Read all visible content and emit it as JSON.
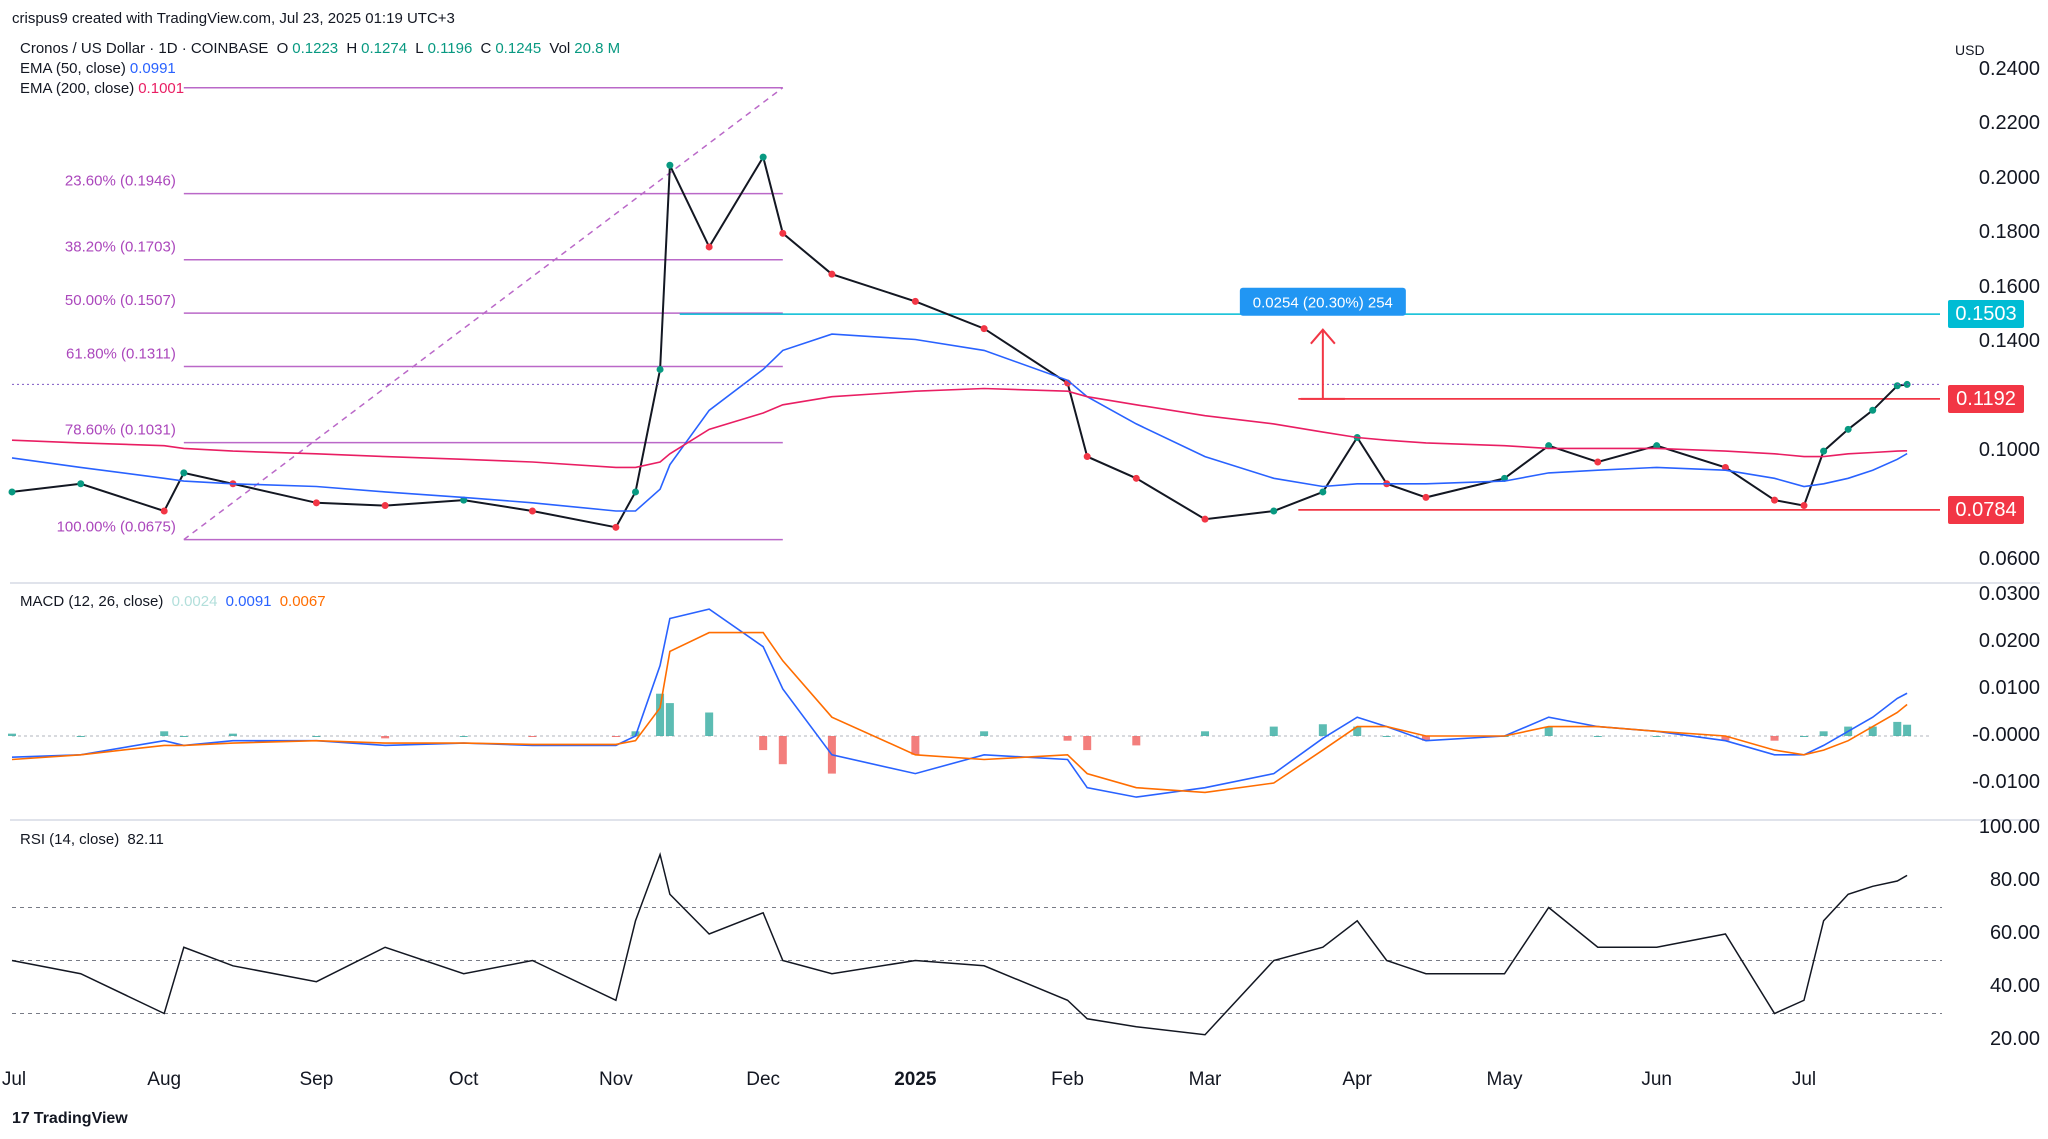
{
  "header": {
    "created_by": "crispus9 created with TradingView.com, Jul 23, 2025 01:19 UTC+3",
    "currency": "USD",
    "footer_brand": "TradingView"
  },
  "symbol_line": {
    "name": "Cronos / US Dollar · 1D · COINBASE",
    "o_label": "O",
    "o_value": "0.1223",
    "h_label": "H",
    "h_value": "0.1274",
    "l_label": "L",
    "l_value": "0.1196",
    "c_label": "C",
    "c_value": "0.1245",
    "vol_label": "Vol",
    "vol_value": "20.8 M"
  },
  "indicators": {
    "ema50": {
      "label": "EMA (50, close)",
      "value": "0.0991",
      "color": "#2962ff"
    },
    "ema200": {
      "label": "EMA (200, close)",
      "value": "0.1001",
      "color": "#e91e63"
    },
    "macd": {
      "label": "MACD (12, 26, close)",
      "hist": "0.0024",
      "macd": "0.0091",
      "signal": "0.0067",
      "hist_color": "#b2dfdb",
      "macd_color": "#2962ff",
      "signal_color": "#ff6d00"
    },
    "rsi": {
      "label": "RSI (14, close)",
      "value": "82.11"
    }
  },
  "price_scale": [
    "0.2400",
    "0.2200",
    "0.2000",
    "0.1800",
    "0.1600",
    "0.1400",
    "0.1000",
    "0.0600"
  ],
  "price_badges": [
    {
      "value": "0.1503",
      "color": "#00bcd4"
    },
    {
      "value": "0.1192",
      "color": "#f23645"
    },
    {
      "value": "0.0784",
      "color": "#f23645"
    }
  ],
  "macd_scale": [
    "0.0300",
    "0.0200",
    "0.0100",
    "-0.0000",
    "-0.0100"
  ],
  "rsi_scale": [
    "100.00",
    "80.00",
    "60.00",
    "40.00",
    "20.00"
  ],
  "time_axis": [
    "Jul",
    "Aug",
    "Sep",
    "Oct",
    "Nov",
    "Dec",
    "2025",
    "Feb",
    "Mar",
    "Apr",
    "May",
    "Jun",
    "Jul"
  ],
  "measure_label": "0.0254 (20.30%) 254",
  "fib_levels": [
    {
      "label": "23.60% (0.1946)",
      "price": 0.1946
    },
    {
      "label": "38.20% (0.1703)",
      "price": 0.1703
    },
    {
      "label": "50.00% (0.1507)",
      "price": 0.1507
    },
    {
      "label": "61.80% (0.1311)",
      "price": 0.1311
    },
    {
      "label": "78.60% (0.1031)",
      "price": 0.1031
    },
    {
      "label": "100.00% (0.0675)",
      "price": 0.0675
    }
  ],
  "chart_data": {
    "type": "line",
    "title": "Cronos / US Dollar · 1D · COINBASE",
    "x_dates": [
      "2024-07-01",
      "2024-07-15",
      "2024-08-01",
      "2024-08-05",
      "2024-08-15",
      "2024-09-01",
      "2024-09-15",
      "2024-10-01",
      "2024-10-15",
      "2024-11-01",
      "2024-11-05",
      "2024-11-10",
      "2024-11-12",
      "2024-11-20",
      "2024-12-01",
      "2024-12-05",
      "2024-12-15",
      "2025-01-01",
      "2025-01-15",
      "2025-02-01",
      "2025-02-05",
      "2025-02-15",
      "2025-03-01",
      "2025-03-15",
      "2025-03-25",
      "2025-04-01",
      "2025-04-07",
      "2025-04-15",
      "2025-05-01",
      "2025-05-10",
      "2025-05-20",
      "2025-06-01",
      "2025-06-15",
      "2025-06-25",
      "2025-07-01",
      "2025-07-05",
      "2025-07-10",
      "2025-07-15",
      "2025-07-20",
      "2025-07-22"
    ],
    "series": [
      {
        "name": "Cronos / US Dollar",
        "values": [
          0.085,
          0.088,
          0.078,
          0.092,
          0.088,
          0.081,
          0.08,
          0.082,
          0.078,
          0.072,
          0.085,
          0.13,
          0.205,
          0.175,
          0.208,
          0.18,
          0.165,
          0.155,
          0.145,
          0.125,
          0.098,
          0.09,
          0.075,
          0.078,
          0.085,
          0.105,
          0.088,
          0.083,
          0.09,
          0.102,
          0.096,
          0.102,
          0.094,
          0.082,
          0.08,
          0.1,
          0.108,
          0.115,
          0.124,
          0.1245
        ]
      },
      {
        "name": "EMA (50, close)",
        "values": [
          0.0975,
          0.094,
          0.09,
          0.089,
          0.088,
          0.087,
          0.085,
          0.083,
          0.081,
          0.078,
          0.078,
          0.086,
          0.095,
          0.115,
          0.13,
          0.137,
          0.143,
          0.141,
          0.137,
          0.126,
          0.12,
          0.11,
          0.098,
          0.09,
          0.087,
          0.088,
          0.088,
          0.088,
          0.089,
          0.092,
          0.093,
          0.094,
          0.093,
          0.09,
          0.087,
          0.088,
          0.09,
          0.093,
          0.097,
          0.0991
        ]
      },
      {
        "name": "EMA (200, close)",
        "values": [
          0.104,
          0.103,
          0.102,
          0.101,
          0.1,
          0.099,
          0.098,
          0.097,
          0.096,
          0.094,
          0.094,
          0.096,
          0.099,
          0.108,
          0.114,
          0.117,
          0.12,
          0.122,
          0.123,
          0.122,
          0.12,
          0.117,
          0.113,
          0.11,
          0.107,
          0.105,
          0.104,
          0.103,
          0.102,
          0.101,
          0.101,
          0.101,
          0.1,
          0.099,
          0.098,
          0.098,
          0.099,
          0.0995,
          0.1,
          0.1001
        ]
      }
    ],
    "macd": {
      "macd_line": [
        -0.0045,
        -0.004,
        -0.001,
        -0.002,
        -0.001,
        -0.001,
        -0.002,
        -0.0015,
        -0.002,
        -0.002,
        0.0,
        0.015,
        0.025,
        0.027,
        0.019,
        0.01,
        -0.004,
        -0.008,
        -0.004,
        -0.005,
        -0.011,
        -0.013,
        -0.011,
        -0.008,
        -0.0005,
        0.004,
        0.002,
        -0.001,
        0.0,
        0.004,
        0.002,
        0.001,
        -0.001,
        -0.004,
        -0.004,
        -0.002,
        0.001,
        0.004,
        0.008,
        0.0091
      ],
      "signal_line": [
        -0.005,
        -0.004,
        -0.002,
        -0.002,
        -0.0015,
        -0.001,
        -0.0015,
        -0.0015,
        -0.0018,
        -0.0018,
        -0.001,
        0.006,
        0.018,
        0.022,
        0.022,
        0.016,
        0.004,
        -0.004,
        -0.005,
        -0.004,
        -0.008,
        -0.011,
        -0.012,
        -0.01,
        -0.003,
        0.002,
        0.002,
        0.0,
        0.0,
        0.002,
        0.002,
        0.001,
        0.0,
        -0.003,
        -0.004,
        -0.003,
        -0.001,
        0.002,
        0.005,
        0.0067
      ],
      "hist": [
        0.0005,
        0.0,
        0.001,
        0.0,
        0.0005,
        0.0,
        -0.0005,
        0.0,
        -0.0002,
        -0.0002,
        0.001,
        0.009,
        0.007,
        0.005,
        -0.003,
        -0.006,
        -0.008,
        -0.004,
        0.001,
        -0.001,
        -0.003,
        -0.002,
        0.001,
        0.002,
        0.0025,
        0.002,
        0.0,
        -0.001,
        0.0,
        0.002,
        0.0,
        0.0,
        -0.001,
        -0.001,
        0.0,
        0.001,
        0.002,
        0.002,
        0.003,
        0.0024
      ]
    },
    "rsi": [
      50,
      45,
      30,
      55,
      48,
      42,
      55,
      45,
      50,
      35,
      65,
      90,
      75,
      60,
      68,
      50,
      45,
      50,
      48,
      35,
      28,
      25,
      22,
      50,
      55,
      65,
      50,
      45,
      45,
      70,
      55,
      55,
      60,
      30,
      35,
      65,
      75,
      78,
      80,
      82.11
    ],
    "annotations": [
      "23.60% (0.1946)",
      "38.20% (0.1703)",
      "50.00% (0.1507)",
      "61.80% (0.1311)",
      "78.60% (0.1031)",
      "100.00% (0.0675)",
      "0.0254 (20.30%) 254"
    ],
    "price_ylim": [
      0.055,
      0.245
    ],
    "macd_ylim": [
      -0.015,
      0.031
    ],
    "rsi_ylim": [
      10,
      100
    ],
    "grid": false
  }
}
